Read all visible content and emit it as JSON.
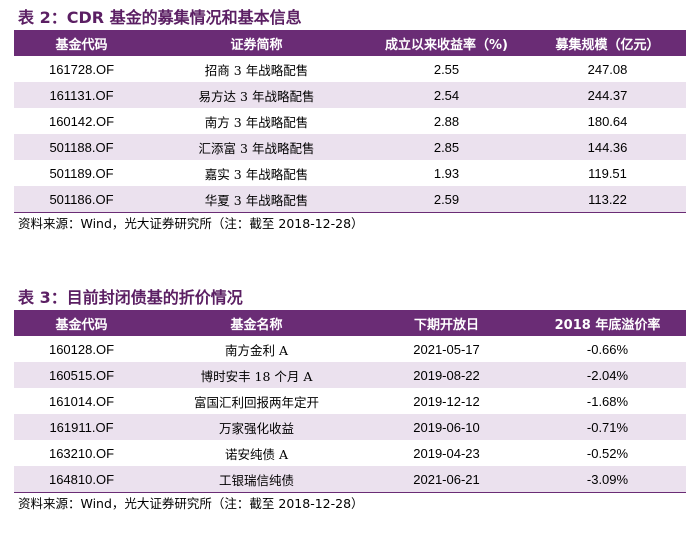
{
  "table2": {
    "title": "表 2：CDR 基金的募集情况和基本信息",
    "headers": [
      "基金代码",
      "证券简称",
      "成立以来收益率（%)",
      "募集规模（亿元）"
    ],
    "rows": [
      [
        "161728.OF",
        "招商 3 年战略配售",
        "2.55",
        "247.08"
      ],
      [
        "161131.OF",
        "易方达 3 年战略配售",
        "2.54",
        "244.37"
      ],
      [
        "160142.OF",
        "南方 3 年战略配售",
        "2.88",
        "180.64"
      ],
      [
        "501188.OF",
        "汇添富 3 年战略配售",
        "2.85",
        "144.36"
      ],
      [
        "501189.OF",
        "嘉实 3 年战略配售",
        "1.93",
        "119.51"
      ],
      [
        "501186.OF",
        "华夏 3 年战略配售",
        "2.59",
        "113.22"
      ]
    ],
    "source": "资料来源：Wind，光大证券研究所（注：截至 2018-12-28）"
  },
  "table3": {
    "title": "表 3：目前封闭债基的折价情况",
    "headers": [
      "基金代码",
      "基金名称",
      "下期开放日",
      "2018 年底溢价率"
    ],
    "rows": [
      [
        "160128.OF",
        "南方金利 A",
        "2021-05-17",
        "-0.66%"
      ],
      [
        "160515.OF",
        "博时安丰 18 个月 A",
        "2019-08-22",
        "-2.04%"
      ],
      [
        "161014.OF",
        "富国汇利回报两年定开",
        "2019-12-12",
        "-1.68%"
      ],
      [
        "161911.OF",
        "万家强化收益",
        "2019-06-10",
        "-0.71%"
      ],
      [
        "163210.OF",
        "诺安纯债 A",
        "2019-04-23",
        "-0.52%"
      ],
      [
        "164810.OF",
        "工银瑞信纯债",
        "2021-06-21",
        "-3.09%"
      ]
    ],
    "source": "资料来源：Wind，光大证券研究所（注：截至 2018-12-28）"
  }
}
